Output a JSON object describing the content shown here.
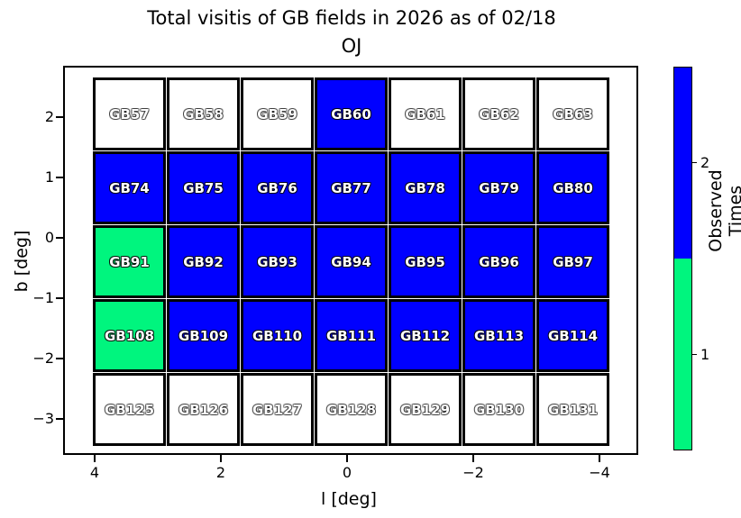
{
  "title": {
    "line1": "Total visitis of GB fields in 2026 as of 02/18",
    "line2": "OJ"
  },
  "axes": {
    "xlabel": "l [deg]",
    "ylabel": "b [deg]",
    "x_tick_labels": [
      "4",
      "2",
      "0",
      "−2",
      "−4"
    ],
    "x_tick_values": [
      4,
      2,
      0,
      -2,
      -4
    ],
    "y_tick_labels": [
      "2",
      "1",
      "0",
      "−1",
      "−2",
      "−3"
    ],
    "y_tick_values": [
      2,
      1,
      0,
      -1,
      -2,
      -3
    ],
    "x_axis_reversed": true
  },
  "colorbar": {
    "label": "Observed Times",
    "tick_labels": [
      "2",
      "1"
    ],
    "tick_values": [
      2,
      1
    ],
    "vmin": 0.5,
    "vmax": 2.5,
    "segment_colors_top_to_bottom": [
      "#0000FF",
      "#00F57E"
    ]
  },
  "colors": {
    "observed_twice": "#0000FF",
    "observed_once": "#00F57E",
    "not_observed": "#FFFFFF",
    "cell_border": "#000000",
    "background": "#FFFFFF"
  },
  "chart_data": {
    "type": "heatmap",
    "title": "Total visitis of GB fields in 2026 as of 02/18 OJ",
    "xlabel": "l [deg]",
    "ylabel": "b [deg]",
    "xlim": [
      4.5,
      -4.6
    ],
    "ylim": [
      -3.7,
      2.85
    ],
    "legend_label": "Observed Times",
    "value_meaning": "observed times per field; 0 = not observed (white), 1 = green, 2 = blue",
    "rows": [
      {
        "fields": [
          "GB57",
          "GB58",
          "GB59",
          "GB60",
          "GB61",
          "GB62",
          "GB63"
        ],
        "values": [
          0,
          0,
          0,
          2,
          0,
          0,
          0
        ]
      },
      {
        "fields": [
          "GB74",
          "GB75",
          "GB76",
          "GB77",
          "GB78",
          "GB79",
          "GB80"
        ],
        "values": [
          2,
          2,
          2,
          2,
          2,
          2,
          2
        ]
      },
      {
        "fields": [
          "GB91",
          "GB92",
          "GB93",
          "GB94",
          "GB95",
          "GB96",
          "GB97"
        ],
        "values": [
          1,
          2,
          2,
          2,
          2,
          2,
          2
        ]
      },
      {
        "fields": [
          "GB108",
          "GB109",
          "GB110",
          "GB111",
          "GB112",
          "GB113",
          "GB114"
        ],
        "values": [
          1,
          2,
          2,
          2,
          2,
          2,
          2
        ]
      },
      {
        "fields": [
          "GB125",
          "GB126",
          "GB127",
          "GB128",
          "GB129",
          "GB130",
          "GB131"
        ],
        "values": [
          0,
          0,
          0,
          0,
          0,
          0,
          0
        ]
      }
    ]
  }
}
